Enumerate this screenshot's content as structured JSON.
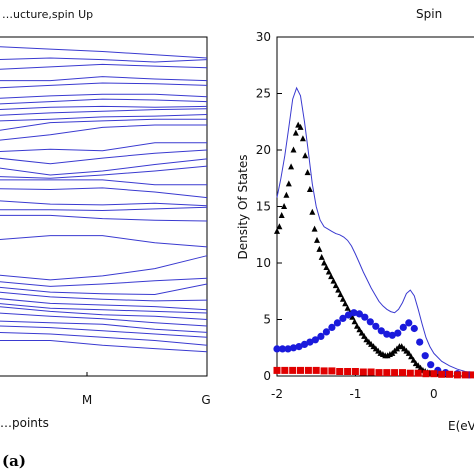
{
  "chart_data": [
    {
      "type": "line",
      "title": "…ucture,spin Up",
      "xlabel": "…points",
      "ylabel": "",
      "x_tick_labels": [
        "M",
        "G"
      ],
      "line_color": "#3a3ad0",
      "grid": false,
      "series": [
        {
          "x": [
            0,
            0.25,
            0.5,
            0.75,
            1
          ],
          "values": [
            408,
            405,
            402,
            398,
            394
          ]
        },
        {
          "x": [
            0,
            0.25,
            0.5,
            0.75,
            1
          ],
          "values": [
            392,
            394,
            392,
            389,
            392
          ]
        },
        {
          "x": [
            0,
            0.25,
            0.5,
            0.75,
            1
          ],
          "values": [
            380,
            383,
            386,
            384,
            382
          ]
        },
        {
          "x": [
            0,
            0.25,
            0.5,
            0.75,
            1
          ],
          "values": [
            366,
            366,
            371,
            368,
            366
          ]
        },
        {
          "x": [
            0,
            0.25,
            0.5,
            0.75,
            1
          ],
          "values": [
            357,
            360,
            363,
            362,
            360
          ]
        },
        {
          "x": [
            0,
            0.25,
            0.5,
            0.75,
            1
          ],
          "values": [
            344,
            347,
            349,
            349,
            346
          ]
        },
        {
          "x": [
            0,
            0.25,
            0.5,
            0.75,
            1
          ],
          "values": [
            337,
            340,
            343,
            342,
            340
          ]
        },
        {
          "x": [
            0,
            0.25,
            0.5,
            0.75,
            1
          ],
          "values": [
            330,
            333,
            334,
            333,
            334
          ]
        },
        {
          "x": [
            0,
            0.25,
            0.5,
            0.75,
            1
          ],
          "values": [
            323,
            326,
            328,
            330,
            331
          ]
        },
        {
          "x": [
            0,
            0.25,
            0.5,
            0.75,
            1
          ],
          "values": [
            316,
            318,
            321,
            322,
            324
          ]
        },
        {
          "x": [
            0,
            0.25,
            0.5,
            0.75,
            1
          ],
          "values": [
            304,
            314,
            316,
            318,
            318
          ]
        },
        {
          "x": [
            0,
            0.25,
            0.5,
            0.75,
            1
          ],
          "values": [
            292,
            299,
            308,
            311,
            311
          ]
        },
        {
          "x": [
            0,
            0.25,
            0.5,
            0.75,
            1
          ],
          "values": [
            278,
            281,
            279,
            289,
            289
          ]
        },
        {
          "x": [
            0,
            0.25,
            0.5,
            0.75,
            1
          ],
          "values": [
            270,
            263,
            270,
            276,
            280
          ]
        },
        {
          "x": [
            0,
            0.25,
            0.5,
            0.75,
            1
          ],
          "values": [
            258,
            249,
            254,
            262,
            269
          ]
        },
        {
          "x": [
            0,
            0.25,
            0.5,
            0.75,
            1
          ],
          "values": [
            247,
            245,
            249,
            254,
            260
          ]
        },
        {
          "x": [
            0,
            0.25,
            0.5,
            0.75,
            1
          ],
          "values": [
            243,
            243,
            243,
            237,
            237
          ]
        },
        {
          "x": [
            0,
            0.25,
            0.5,
            0.75,
            1
          ],
          "values": [
            232,
            231,
            233,
            228,
            221
          ]
        },
        {
          "x": [
            0,
            0.25,
            0.5,
            0.75,
            1
          ],
          "values": [
            217,
            213,
            212,
            214,
            211
          ]
        },
        {
          "x": [
            0,
            0.25,
            0.5,
            0.75,
            1
          ],
          "values": [
            206,
            206,
            205,
            207,
            209
          ]
        },
        {
          "x": [
            0,
            0.25,
            0.5,
            0.75,
            1
          ],
          "values": [
            199,
            199,
            195,
            193,
            192
          ]
        },
        {
          "x": [
            0,
            0.25,
            0.5,
            0.75,
            1
          ],
          "values": [
            169,
            174,
            174,
            165,
            160
          ]
        },
        {
          "x": [
            0,
            0.25,
            0.5,
            0.75,
            1
          ],
          "values": [
            125,
            119,
            124,
            133,
            149
          ]
        },
        {
          "x": [
            0,
            0.25,
            0.5,
            0.75,
            1
          ],
          "values": [
            117,
            111,
            114,
            118,
            121
          ]
        },
        {
          "x": [
            0,
            0.25,
            0.5,
            0.75,
            1
          ],
          "values": [
            110,
            104,
            102,
            101,
            114
          ]
        },
        {
          "x": [
            0,
            0.25,
            0.5,
            0.75,
            1
          ],
          "values": [
            104,
            98,
            95,
            93,
            94
          ]
        },
        {
          "x": [
            0,
            0.25,
            0.5,
            0.75,
            1
          ],
          "values": [
            96,
            90,
            88,
            86,
            82
          ]
        },
        {
          "x": [
            0,
            0.25,
            0.5,
            0.75,
            1
          ],
          "values": [
            90,
            84,
            82,
            80,
            78
          ]
        },
        {
          "x": [
            0,
            0.25,
            0.5,
            0.75,
            1
          ],
          "values": [
            86,
            80,
            76,
            74,
            70
          ]
        },
        {
          "x": [
            0,
            0.25,
            0.5,
            0.75,
            1
          ],
          "values": [
            78,
            74,
            71,
            66,
            62
          ]
        },
        {
          "x": [
            0,
            0.25,
            0.5,
            0.75,
            1
          ],
          "values": [
            68,
            66,
            64,
            58,
            54
          ]
        },
        {
          "x": [
            0,
            0.25,
            0.5,
            0.75,
            1
          ],
          "values": [
            62,
            60,
            56,
            52,
            48
          ]
        },
        {
          "x": [
            0,
            0.25,
            0.5,
            0.75,
            1
          ],
          "values": [
            54,
            52,
            48,
            44,
            38
          ]
        },
        {
          "x": [
            0,
            0.25,
            0.5,
            0.75,
            1
          ],
          "values": [
            44,
            44,
            38,
            34,
            30
          ]
        }
      ]
    },
    {
      "type": "scatter",
      "title": "Spin",
      "xlabel": "E(eV",
      "ylabel": "Density Of States",
      "xlim": [
        -2,
        0.55
      ],
      "ylim": [
        0,
        30
      ],
      "x_ticks": [
        -2,
        -1,
        0
      ],
      "y_ticks": [
        0,
        5,
        10,
        15,
        20,
        25,
        30
      ],
      "grid": false,
      "series": [
        {
          "style": "line",
          "color": "#3a3ad0",
          "x": [
            -2,
            -1.95,
            -1.9,
            -1.85,
            -1.8,
            -1.75,
            -1.7,
            -1.65,
            -1.6,
            -1.55,
            -1.5,
            -1.45,
            -1.4,
            -1.35,
            -1.3,
            -1.25,
            -1.2,
            -1.15,
            -1.1,
            -1.05,
            -1.0,
            -0.95,
            -0.9,
            -0.85,
            -0.8,
            -0.75,
            -0.7,
            -0.65,
            -0.6,
            -0.55,
            -0.5,
            -0.45,
            -0.4,
            -0.35,
            -0.3,
            -0.25,
            -0.2,
            -0.15,
            -0.1,
            -0.05,
            0,
            0.1,
            0.2,
            0.3,
            0.4,
            0.5
          ],
          "values": [
            15.8,
            17.5,
            19.5,
            22.0,
            24.5,
            25.5,
            24.8,
            22.5,
            19.8,
            17.0,
            15.0,
            13.8,
            13.2,
            13.0,
            12.8,
            12.6,
            12.5,
            12.3,
            12.0,
            11.5,
            10.8,
            10.0,
            9.2,
            8.5,
            7.8,
            7.2,
            6.6,
            6.2,
            5.9,
            5.7,
            5.6,
            5.9,
            6.5,
            7.3,
            7.6,
            7.1,
            5.9,
            4.6,
            3.4,
            2.6,
            2.0,
            1.3,
            0.9,
            0.6,
            0.4,
            0.3
          ]
        },
        {
          "style": "triangle",
          "color": "#000000",
          "x": [
            -2,
            -1.97,
            -1.94,
            -1.91,
            -1.88,
            -1.85,
            -1.82,
            -1.79,
            -1.76,
            -1.73,
            -1.7,
            -1.67,
            -1.64,
            -1.61,
            -1.58,
            -1.55,
            -1.52,
            -1.49,
            -1.46,
            -1.43,
            -1.4,
            -1.37,
            -1.34,
            -1.31,
            -1.28,
            -1.25,
            -1.22,
            -1.19,
            -1.16,
            -1.13,
            -1.1,
            -1.07,
            -1.04,
            -1.01,
            -0.98,
            -0.95,
            -0.92,
            -0.89,
            -0.86,
            -0.83,
            -0.8,
            -0.77,
            -0.74,
            -0.71,
            -0.68,
            -0.65,
            -0.62,
            -0.59,
            -0.56,
            -0.53,
            -0.5,
            -0.47,
            -0.44,
            -0.41,
            -0.38,
            -0.35,
            -0.32,
            -0.29,
            -0.26,
            -0.23,
            -0.2,
            -0.17,
            -0.14,
            -0.11,
            -0.08,
            -0.05,
            -0.02,
            0.05,
            0.15,
            0.3,
            0.45
          ],
          "values": [
            12.8,
            13.2,
            14.2,
            15.0,
            16.0,
            17.0,
            18.5,
            20.0,
            21.5,
            22.2,
            22.0,
            21.0,
            19.5,
            18.0,
            16.5,
            14.5,
            13.0,
            12.0,
            11.2,
            10.5,
            10.0,
            9.6,
            9.2,
            8.8,
            8.4,
            8.0,
            7.6,
            7.2,
            6.8,
            6.4,
            6.0,
            5.6,
            5.2,
            4.8,
            4.4,
            4.1,
            3.8,
            3.5,
            3.2,
            3.0,
            2.8,
            2.6,
            2.4,
            2.2,
            2.0,
            1.9,
            1.8,
            1.8,
            1.9,
            2.0,
            2.2,
            2.4,
            2.6,
            2.6,
            2.4,
            2.2,
            2.0,
            1.7,
            1.4,
            1.1,
            0.9,
            0.7,
            0.5,
            0.4,
            0.3,
            0.25,
            0.2,
            0.15,
            0.1,
            0.1,
            0.1
          ]
        },
        {
          "style": "circle",
          "color": "#1a1adc",
          "x": [
            -2,
            -1.93,
            -1.86,
            -1.79,
            -1.72,
            -1.65,
            -1.58,
            -1.51,
            -1.44,
            -1.37,
            -1.3,
            -1.23,
            -1.16,
            -1.09,
            -1.02,
            -0.95,
            -0.88,
            -0.81,
            -0.74,
            -0.67,
            -0.6,
            -0.53,
            -0.46,
            -0.39,
            -0.32,
            -0.25,
            -0.18,
            -0.11,
            -0.04,
            0.05,
            0.15,
            0.3,
            0.45
          ],
          "values": [
            2.4,
            2.4,
            2.4,
            2.5,
            2.6,
            2.8,
            3.0,
            3.2,
            3.5,
            3.9,
            4.3,
            4.7,
            5.1,
            5.4,
            5.6,
            5.5,
            5.2,
            4.8,
            4.4,
            4.0,
            3.7,
            3.6,
            3.8,
            4.3,
            4.7,
            4.2,
            3.0,
            1.8,
            1.0,
            0.5,
            0.3,
            0.2,
            0.1
          ]
        },
        {
          "style": "square",
          "color": "#e00000",
          "x": [
            -2,
            -1.9,
            -1.8,
            -1.7,
            -1.6,
            -1.5,
            -1.4,
            -1.3,
            -1.2,
            -1.1,
            -1.0,
            -0.9,
            -0.8,
            -0.7,
            -0.6,
            -0.5,
            -0.4,
            -0.3,
            -0.2,
            -0.1,
            0,
            0.1,
            0.2,
            0.3,
            0.4,
            0.5
          ],
          "values": [
            0.5,
            0.5,
            0.5,
            0.5,
            0.5,
            0.5,
            0.45,
            0.45,
            0.4,
            0.4,
            0.4,
            0.35,
            0.35,
            0.3,
            0.3,
            0.3,
            0.3,
            0.25,
            0.25,
            0.2,
            0.2,
            0.15,
            0.15,
            0.1,
            0.1,
            0.1
          ]
        }
      ]
    }
  ],
  "panel_label": "(a)"
}
